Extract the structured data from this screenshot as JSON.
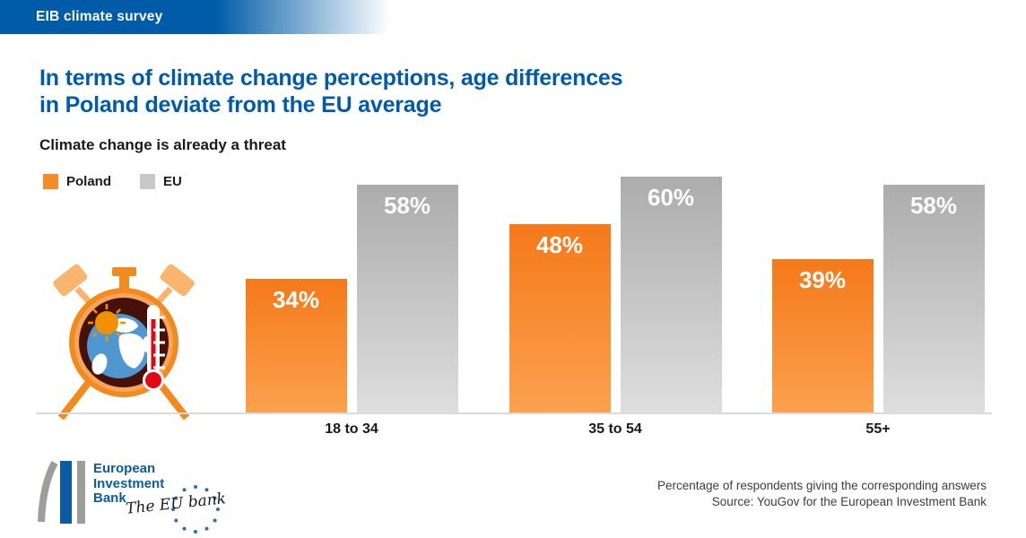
{
  "banner": {
    "label": "EIB climate survey"
  },
  "title": {
    "line1": "In terms of climate change perceptions, age differences",
    "line2": "in Poland deviate from the EU average"
  },
  "subtitle": "Climate change is already a threat",
  "legend": [
    {
      "label": "Poland",
      "color": "#F68B28"
    },
    {
      "label": "EU",
      "color": "#C8C8C8"
    }
  ],
  "chart_data": {
    "type": "bar",
    "title": "Climate change is already a threat",
    "categories": [
      "18 to 34",
      "35 to 54",
      "55+"
    ],
    "series": [
      {
        "name": "Poland",
        "values": [
          34,
          48,
          39
        ],
        "color_top": "#F5791A",
        "color_bottom": "#FBA14E"
      },
      {
        "name": "EU",
        "values": [
          58,
          60,
          58
        ],
        "color_top": "#ACACAC",
        "color_bottom": "#DEDEDE"
      }
    ],
    "value_suffix": "%",
    "value_label_color": "#ffffff",
    "xlabel": "",
    "ylabel": "",
    "ylim": [
      0,
      63
    ],
    "grid": false,
    "legend_position": "top-left"
  },
  "illustration": {
    "name": "alarm-clock-globe-thermometer"
  },
  "logo": {
    "name_line1": "European",
    "name_line2": "Investment",
    "name_line3": "Bank",
    "tagline": "The EU bank"
  },
  "footnote": {
    "line1": "Percentage of respondents giving the corresponding answers",
    "line2": "Source: YouGov for the European Investment Bank"
  },
  "colors": {
    "banner_blue": "#005CA8",
    "title_blue": "#005CA8",
    "axis_line": "#DBDBDB",
    "text_black": "#1a1a1a",
    "footnote_gray": "#3d3d3d",
    "clock_orange": "#F28A1E",
    "clock_light_orange": "#F9B46E",
    "clock_inner_dark": "#451109",
    "globe_blue": "#4E97D1",
    "thermometer_red": "#E30613",
    "logo_blue": "#0B5BA5",
    "logo_gray": "#9D9D9C"
  }
}
